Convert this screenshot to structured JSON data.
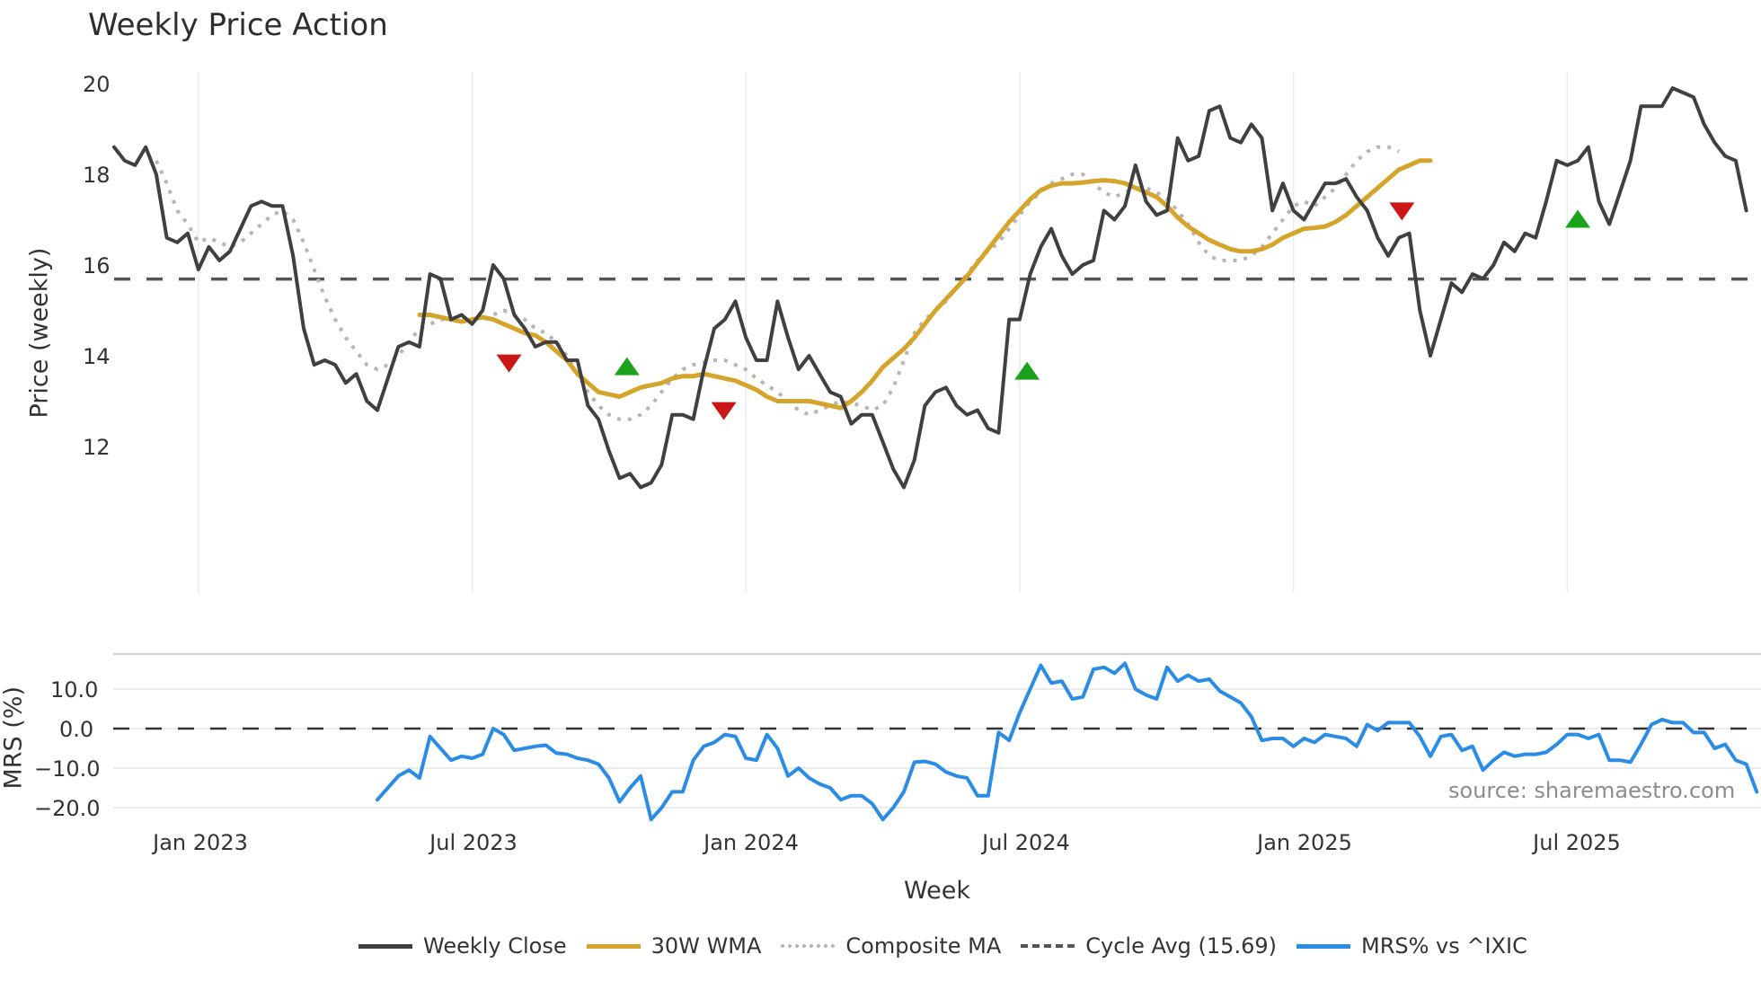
{
  "title": "Weekly Price Action",
  "colors": {
    "close": "#404040",
    "wma": "#d4a52a",
    "composite": "#b5b5b5",
    "cycle": "#555555",
    "mrs": "#2b8ce6",
    "signal_up": "#1aa31a",
    "signal_down": "#cc1515",
    "grid": "#e9ecef"
  },
  "source_label": "source: sharemaestro.com",
  "legend": [
    {
      "label": "Weekly Close",
      "key": "close",
      "style": "solid"
    },
    {
      "label": "30W WMA",
      "key": "wma",
      "style": "solid"
    },
    {
      "label": "Composite MA",
      "key": "composite",
      "style": "dotted"
    },
    {
      "label": "Cycle Avg (15.69)",
      "key": "cycle",
      "style": "dashed"
    },
    {
      "label": "MRS% vs ^IXIC",
      "key": "mrs",
      "style": "solid"
    }
  ],
  "chart_data": [
    {
      "type": "line",
      "title": "Weekly Price Action",
      "xlabel": "Week",
      "ylabel": "Price (weekly)",
      "ylim": [
        10.6,
        20.3
      ],
      "yticks": [
        12,
        14,
        16,
        18,
        20
      ],
      "xticks": [
        "Jan 2023",
        "Jul 2023",
        "Jan 2024",
        "Jul 2024",
        "Jan 2025",
        "Jul 2025"
      ],
      "xtick_week_index": [
        8,
        34,
        60,
        86,
        112,
        138
      ],
      "grid": "vertical",
      "series": [
        {
          "name": "Weekly Close",
          "start_index": 0,
          "values": [
            18.6,
            18.3,
            18.2,
            18.6,
            18.0,
            16.6,
            16.5,
            16.7,
            15.9,
            16.4,
            16.1,
            16.3,
            16.8,
            17.3,
            17.4,
            17.3,
            17.3,
            16.2,
            14.6,
            13.8,
            13.9,
            13.8,
            13.4,
            13.6,
            13.0,
            12.8,
            13.5,
            14.2,
            14.3,
            14.2,
            15.8,
            15.7,
            14.8,
            14.9,
            14.7,
            15.0,
            16.0,
            15.7,
            14.9,
            14.6,
            14.2,
            14.3,
            14.3,
            13.9,
            13.9,
            12.9,
            12.6,
            11.9,
            11.3,
            11.4,
            11.1,
            11.2,
            11.6,
            12.7,
            12.7,
            12.6,
            13.7,
            14.6,
            14.8,
            15.2,
            14.4,
            13.9,
            13.9,
            15.2,
            14.4,
            13.7,
            14.0,
            13.6,
            13.2,
            13.1,
            12.5,
            12.7,
            12.7,
            12.1,
            11.5,
            11.1,
            11.7,
            12.9,
            13.2,
            13.3,
            12.9,
            12.7,
            12.8,
            12.4,
            12.3,
            14.8,
            14.8,
            15.8,
            16.4,
            16.8,
            16.2,
            15.8,
            16.0,
            16.1,
            17.2,
            17.0,
            17.3,
            18.2,
            17.4,
            17.1,
            17.2,
            18.8,
            18.3,
            18.4,
            19.4,
            19.5,
            18.8,
            18.7,
            19.1,
            18.8,
            17.2,
            17.8,
            17.2,
            17.0,
            17.4,
            17.8,
            17.8,
            17.9,
            17.5,
            17.2,
            16.6,
            16.2,
            16.6,
            16.7,
            15.0,
            14.0,
            14.8,
            15.6,
            15.4,
            15.8,
            15.7,
            16.0,
            16.5,
            16.3,
            16.7,
            16.6,
            17.4,
            18.3,
            18.2,
            18.3,
            18.6,
            17.4,
            16.9,
            17.6,
            18.3,
            19.5,
            19.5,
            19.5,
            19.9,
            19.8,
            19.7,
            19.1,
            18.7,
            18.4,
            18.3,
            17.2
          ]
        },
        {
          "name": "30W WMA",
          "start_index": 29,
          "values": [
            14.9,
            14.9,
            14.85,
            14.8,
            14.75,
            14.8,
            14.85,
            14.8,
            14.7,
            14.6,
            14.5,
            14.45,
            14.3,
            14.1,
            13.9,
            13.6,
            13.4,
            13.2,
            13.15,
            13.1,
            13.2,
            13.3,
            13.35,
            13.4,
            13.5,
            13.55,
            13.55,
            13.6,
            13.55,
            13.5,
            13.45,
            13.35,
            13.25,
            13.1,
            13.0,
            13.0,
            13.0,
            13.0,
            12.95,
            12.9,
            12.85,
            13.0,
            13.2,
            13.45,
            13.75,
            13.95,
            14.15,
            14.4,
            14.7,
            15.0,
            15.25,
            15.5,
            15.75,
            16.05,
            16.35,
            16.65,
            16.95,
            17.2,
            17.45,
            17.65,
            17.75,
            17.8,
            17.8,
            17.82,
            17.85,
            17.87,
            17.85,
            17.8,
            17.7,
            17.6,
            17.5,
            17.3,
            17.05,
            16.85,
            16.7,
            16.55,
            16.45,
            16.35,
            16.3,
            16.3,
            16.35,
            16.45,
            16.6,
            16.7,
            16.8,
            16.82,
            16.85,
            16.95,
            17.1,
            17.3,
            17.5,
            17.7,
            17.9,
            18.1,
            18.2,
            18.3,
            18.3
          ]
        },
        {
          "name": "Composite MA",
          "start_index": 4,
          "values": [
            18.3,
            17.8,
            17.2,
            16.9,
            16.5,
            16.6,
            16.5,
            16.4,
            16.5,
            16.7,
            16.9,
            17.1,
            17.2,
            17.0,
            16.5,
            15.9,
            15.3,
            14.8,
            14.4,
            14.1,
            13.8,
            13.7,
            13.8,
            14.0,
            14.3,
            14.6,
            14.7,
            14.8,
            14.8,
            14.8,
            14.8,
            14.8,
            14.9,
            15.0,
            14.9,
            14.8,
            14.6,
            14.5,
            14.3,
            14.0,
            13.6,
            13.2,
            12.9,
            12.7,
            12.6,
            12.6,
            12.7,
            12.9,
            13.2,
            13.5,
            13.7,
            13.8,
            13.85,
            13.9,
            13.9,
            13.8,
            13.7,
            13.5,
            13.35,
            13.2,
            13.0,
            12.8,
            12.7,
            12.8,
            12.9,
            13.0,
            12.95,
            12.9,
            12.8,
            12.9,
            13.3,
            13.9,
            14.5,
            14.8,
            15.0,
            15.2,
            15.5,
            15.8,
            16.1,
            16.3,
            16.5,
            16.8,
            17.1,
            17.4,
            17.6,
            17.8,
            17.9,
            18.0,
            18.0,
            17.8,
            17.6,
            17.5,
            17.6,
            17.7,
            17.7,
            17.6,
            17.45,
            17.2,
            16.9,
            16.5,
            16.2,
            16.1,
            16.1,
            16.1,
            16.2,
            16.4,
            16.7,
            17.0,
            17.3,
            17.4,
            17.3,
            17.5,
            17.7,
            18.0,
            18.3,
            18.5,
            18.6,
            18.6,
            18.5
          ]
        },
        {
          "name": "Cycle Avg (15.69)",
          "type": "hline",
          "value": 15.69
        }
      ],
      "markers": [
        {
          "type": "down",
          "week_index": 37.5,
          "value": 13.85
        },
        {
          "type": "up",
          "week_index": 48.7,
          "value": 13.75
        },
        {
          "type": "down",
          "week_index": 57.9,
          "value": 12.8
        },
        {
          "type": "up",
          "week_index": 86.7,
          "value": 13.65
        },
        {
          "type": "down",
          "week_index": 122.3,
          "value": 17.2
        },
        {
          "type": "up",
          "week_index": 139,
          "value": 17.0
        }
      ]
    },
    {
      "type": "line",
      "title": "",
      "xlabel": "Week",
      "ylabel": "MRS (%)",
      "ylim": [
        -24,
        15
      ],
      "yticks": [
        -20.0,
        -10.0,
        0.0,
        10.0
      ],
      "reference_line": 0.0,
      "series": [
        {
          "name": "MRS% vs ^IXIC",
          "start_index": 25,
          "values": [
            -18,
            -15,
            -12,
            -10.5,
            -12.5,
            -2,
            -5,
            -8,
            -7,
            -7.5,
            -6.5,
            0,
            -1.5,
            -5.5,
            -5,
            -4.5,
            -4.2,
            -6.2,
            -6.5,
            -7.5,
            -8,
            -9,
            -12.5,
            -18.5,
            -15,
            -12,
            -23,
            -20,
            -16,
            -16,
            -8,
            -4.5,
            -3.5,
            -1.5,
            -2,
            -7.5,
            -8,
            -1.5,
            -5,
            -12,
            -10,
            -12.5,
            -14,
            -15,
            -18,
            -17,
            -17,
            -19,
            -23,
            -20,
            -16,
            -8.5,
            -8.3,
            -9,
            -11,
            -12,
            -12.5,
            -17,
            -17,
            -1,
            -3,
            4,
            10,
            16,
            11.5,
            12,
            7.5,
            8,
            15,
            15.5,
            14,
            16.5,
            10,
            8.5,
            7.5,
            15.5,
            12,
            13.5,
            12,
            12.5,
            9.5,
            8,
            6.5,
            3,
            -3,
            -2.5,
            -2.5,
            -4.5,
            -2.5,
            -3.5,
            -1.5,
            -2,
            -2.5,
            -4.5,
            1,
            -0.5,
            1.5,
            1.5,
            1.5,
            -2,
            -7,
            -2,
            -1.5,
            -5.5,
            -4.5,
            -10.5,
            -8,
            -6,
            -7,
            -6.5,
            -6.5,
            -6,
            -4,
            -1.5,
            -1.5,
            -2.5,
            -1.5,
            -8,
            -8,
            -8.5,
            -4,
            1,
            2.3,
            1.5,
            1.5,
            -1,
            -1,
            -5,
            -4,
            -8,
            -9,
            -16
          ]
        }
      ]
    }
  ]
}
